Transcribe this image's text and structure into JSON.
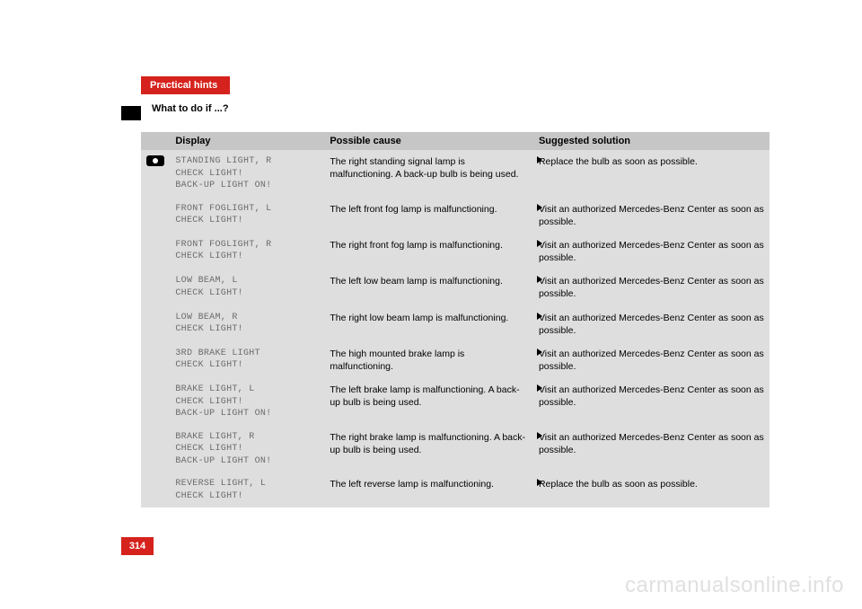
{
  "header": {
    "section_title": "Practical hints",
    "subtitle": "What to do if ...?"
  },
  "table": {
    "columns": {
      "display": "Display",
      "cause": "Possible cause",
      "solution": "Suggested solution"
    },
    "rows": [
      {
        "display_lines": [
          "STANDING LIGHT, R",
          "CHECK LIGHT!",
          "BACK-UP LIGHT ON!"
        ],
        "cause": "The right standing signal lamp is malfunctioning. A back-up bulb is being used.",
        "solution": "Replace the bulb as soon as possible."
      },
      {
        "display_lines": [
          "FRONT FOGLIGHT, L",
          "CHECK LIGHT!"
        ],
        "cause": "The left front fog lamp is malfunctioning.",
        "solution": "Visit an authorized Mercedes-Benz Center as soon as possible."
      },
      {
        "display_lines": [
          "FRONT FOGLIGHT, R",
          "CHECK LIGHT!"
        ],
        "cause": "The right front fog lamp is malfunctioning.",
        "solution": "Visit an authorized Mercedes-Benz Center as soon as possible."
      },
      {
        "display_lines": [
          "LOW BEAM, L",
          "CHECK LIGHT!"
        ],
        "cause": "The left low beam lamp is malfunctioning.",
        "solution": "Visit an authorized Mercedes-Benz Center as soon as possible."
      },
      {
        "display_lines": [
          "LOW BEAM, R",
          "CHECK LIGHT!"
        ],
        "cause": "The right low beam lamp is malfunctioning.",
        "solution": "Visit an authorized Mercedes-Benz Center as soon as possible."
      },
      {
        "display_lines": [
          "3RD BRAKE LIGHT",
          "CHECK LIGHT!"
        ],
        "cause": "The high mounted brake lamp is malfunctioning.",
        "solution": "Visit an authorized Mercedes-Benz Center as soon as possible."
      },
      {
        "display_lines": [
          "BRAKE LIGHT, L",
          "CHECK LIGHT!",
          "BACK-UP LIGHT ON!"
        ],
        "cause": "The left brake lamp is malfunctioning. A back-up bulb is being used.",
        "solution": "Visit an authorized Mercedes-Benz Center as soon as possible."
      },
      {
        "display_lines": [
          "BRAKE LIGHT, R",
          "CHECK LIGHT!",
          "BACK-UP LIGHT ON!"
        ],
        "cause": "The right brake lamp is malfunctioning. A back-up bulb is being used.",
        "solution": "Visit an authorized Mercedes-Benz Center as soon as possible."
      },
      {
        "display_lines": [
          "REVERSE LIGHT, L",
          "CHECK LIGHT!"
        ],
        "cause": "The left reverse lamp is malfunctioning.",
        "solution": "Replace the bulb as soon as possible."
      }
    ]
  },
  "page_number": "314",
  "watermark": "carmanualsonline.info",
  "colors": {
    "red": "#d6221d",
    "header_grey": "#c6c6c6",
    "cell_grey": "#dedede",
    "mono_text": "#6b6b6b",
    "watermark_grey": "#e0e0e0"
  }
}
